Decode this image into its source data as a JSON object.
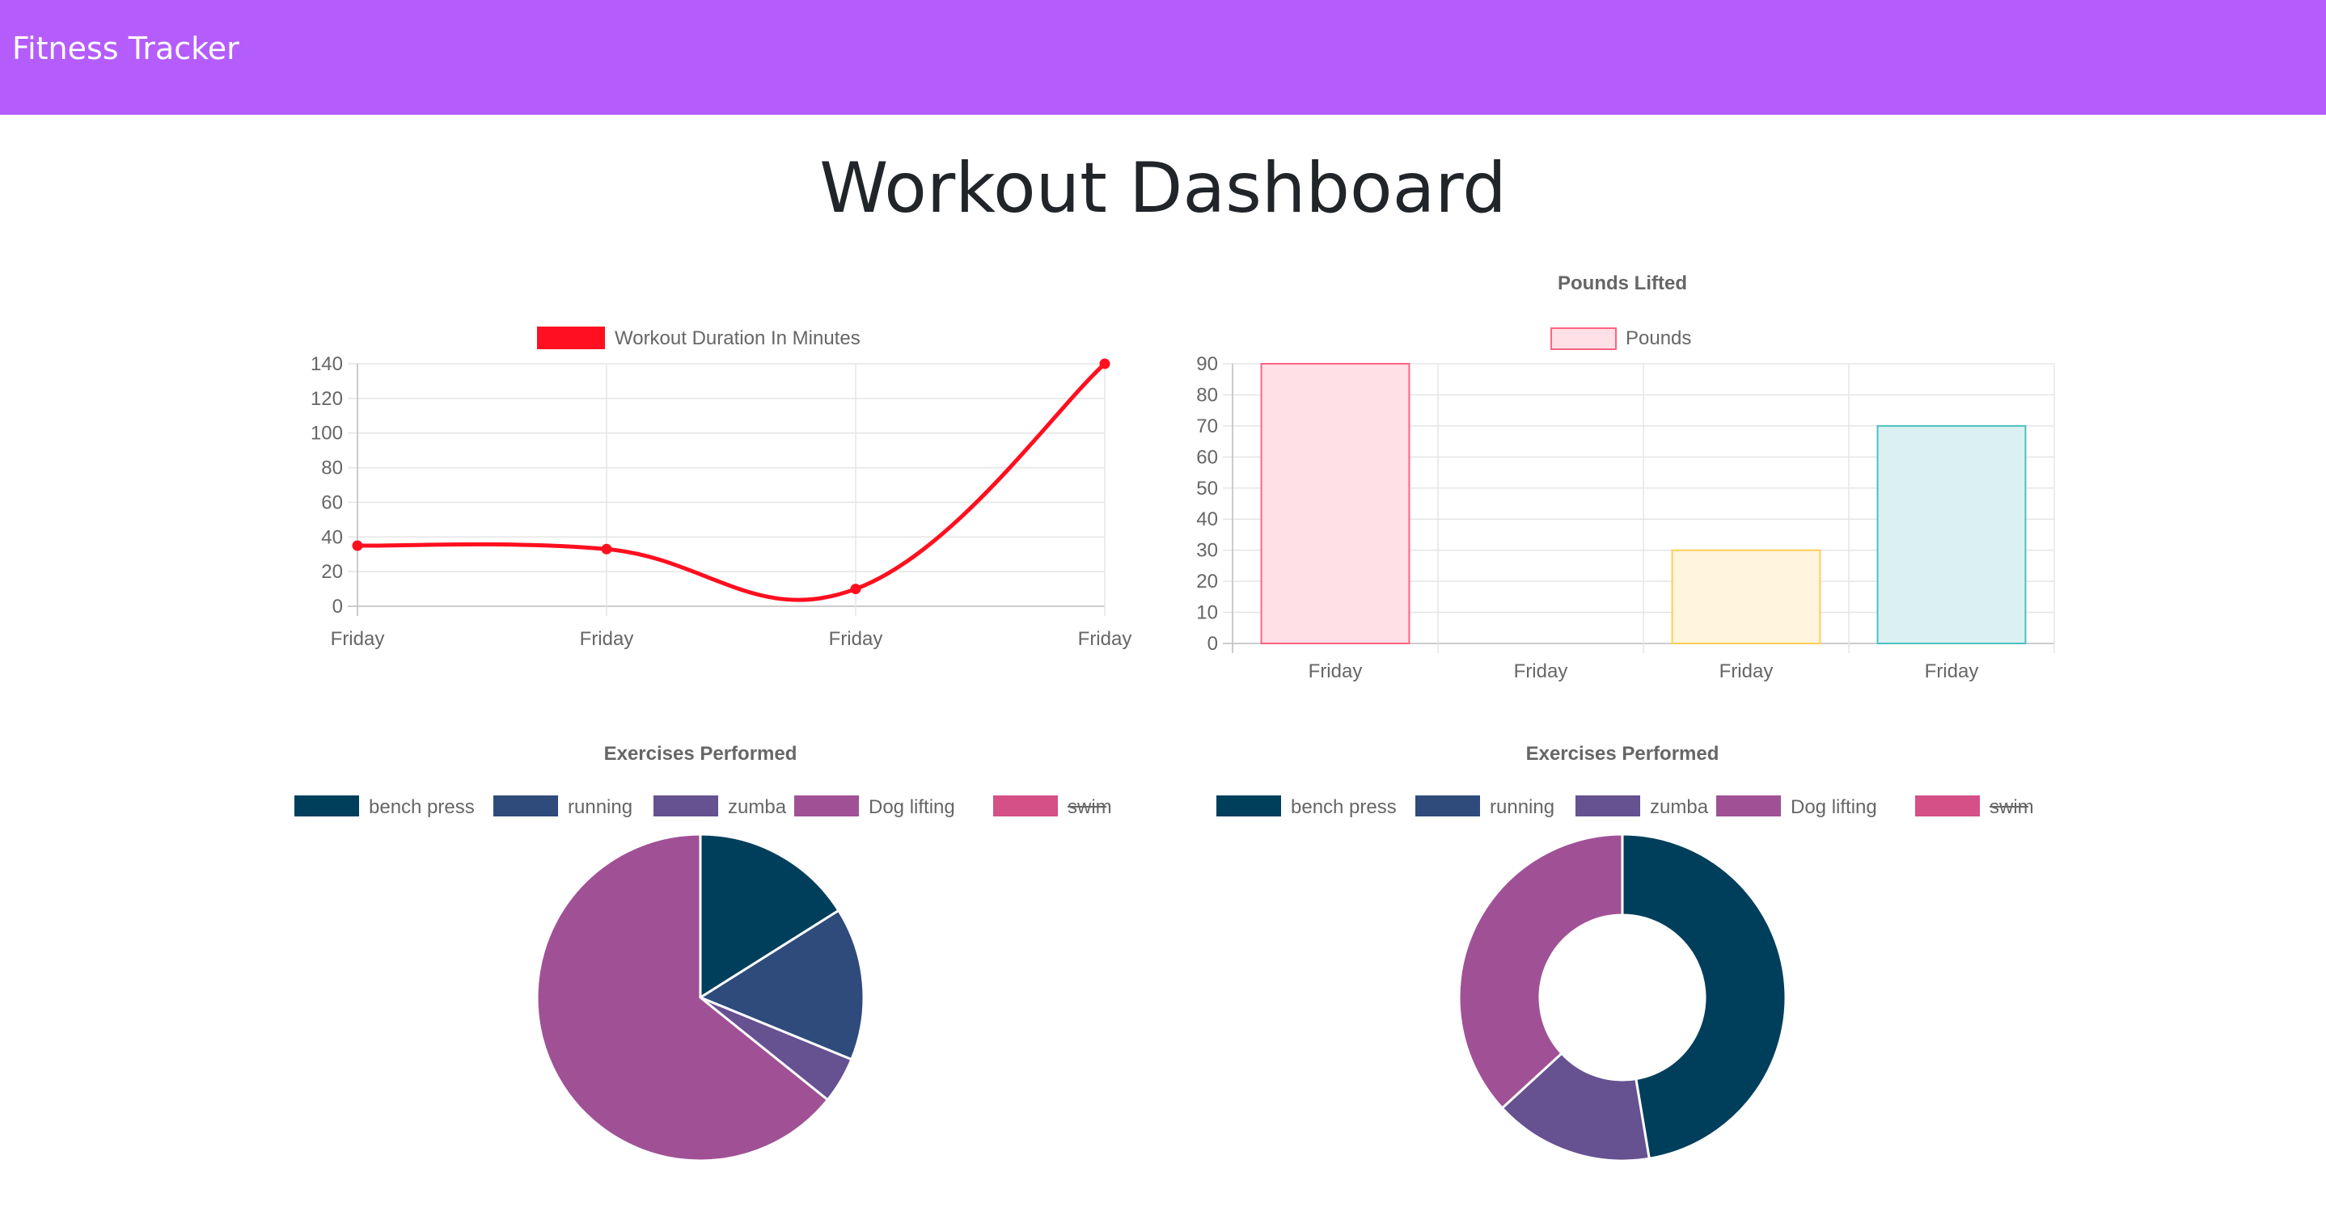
{
  "app": {
    "brand": "Fitness Tracker",
    "brand_color": "#b45dfc"
  },
  "page": {
    "title": "Workout Dashboard"
  },
  "charts": {
    "duration": {
      "legend_label": "Workout Duration In Minutes",
      "color": "#ff0f1f"
    },
    "pounds": {
      "title": "Pounds Lifted",
      "legend_label": "Pounds"
    },
    "exercises_pie": {
      "title": "Exercises Performed",
      "legend": [
        {
          "label": "bench press",
          "color": "#003f5c",
          "hidden": false
        },
        {
          "label": "running",
          "color": "#2f4b7c",
          "hidden": false
        },
        {
          "label": "zumba",
          "color": "#665191",
          "hidden": false
        },
        {
          "label": "Dog lifting",
          "color": "#a05195",
          "hidden": false
        },
        {
          "label": "swim",
          "color": "#d45087",
          "hidden": true
        }
      ]
    },
    "exercises_donut": {
      "title": "Exercises Performed",
      "legend": [
        {
          "label": "bench press",
          "color": "#003f5c",
          "hidden": false
        },
        {
          "label": "running",
          "color": "#2f4b7c",
          "hidden": false
        },
        {
          "label": "zumba",
          "color": "#665191",
          "hidden": false
        },
        {
          "label": "Dog lifting",
          "color": "#a05195",
          "hidden": false
        },
        {
          "label": "swim",
          "color": "#d45087",
          "hidden": true
        }
      ]
    }
  },
  "chart_data": [
    {
      "type": "line",
      "title": "",
      "x": [
        "Friday",
        "Friday",
        "Friday",
        "Friday"
      ],
      "series": [
        {
          "name": "Workout Duration In Minutes",
          "values": [
            35,
            33,
            10,
            140
          ],
          "color": "#ff0f1f"
        }
      ],
      "ylim": [
        0,
        140
      ],
      "yticks": [
        0,
        20,
        40,
        60,
        80,
        100,
        120,
        140
      ],
      "legend_position": "top",
      "grid": true
    },
    {
      "type": "bar",
      "title": "Pounds Lifted",
      "categories": [
        "Friday",
        "Friday",
        "Friday",
        "Friday"
      ],
      "series": [
        {
          "name": "Pounds",
          "values": [
            90,
            0,
            30,
            70
          ]
        }
      ],
      "bar_fill": [
        "#ffe0e6",
        "#ebe0ff",
        "#fff4dc",
        "#dbf1f1"
      ],
      "bar_stroke": [
        "#ff6384",
        "#9966ff",
        "#ffce56",
        "#4bc0c0"
      ],
      "ylim": [
        0,
        90
      ],
      "yticks": [
        0,
        10,
        20,
        30,
        40,
        50,
        60,
        70,
        80,
        90
      ],
      "legend_position": "top",
      "grid": true
    },
    {
      "type": "pie",
      "title": "Exercises Performed",
      "labels": [
        "bench press",
        "running",
        "zumba",
        "Dog lifting",
        "swim"
      ],
      "values": [
        35,
        33,
        10,
        140,
        0
      ],
      "colors": [
        "#003f5c",
        "#2f4b7c",
        "#665191",
        "#a05195",
        "#d45087"
      ],
      "hidden": [
        "swim"
      ],
      "legend_position": "top"
    },
    {
      "type": "doughnut",
      "title": "Exercises Performed",
      "labels": [
        "bench press",
        "running",
        "zumba",
        "Dog lifting",
        "swim"
      ],
      "values": [
        90,
        0,
        30,
        70,
        0
      ],
      "colors": [
        "#003f5c",
        "#2f4b7c",
        "#665191",
        "#a05195",
        "#d45087"
      ],
      "hidden": [
        "swim"
      ],
      "legend_position": "top"
    }
  ]
}
